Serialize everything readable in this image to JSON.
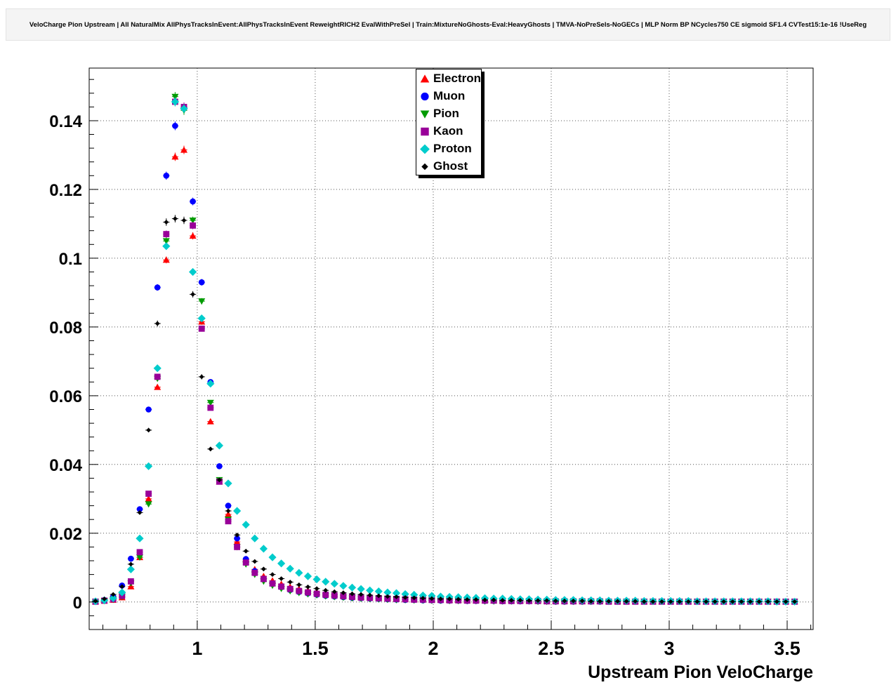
{
  "title": "VeloCharge Pion Upstream | All NaturalMix AllPhysTracksInEvent:AllPhysTracksInEvent ReweightRICH2 EvalWithPreSel | Train:MixtureNoGhosts-Eval:HeavyGhosts | TMVA-NoPreSels-NoGECs | MLP Norm BP NCycles750 CE sigmoid SF1.4 CVTest15:1e-16 !UseReg",
  "x_axis": {
    "label": "Upstream Pion VeloCharge",
    "min": 0.542,
    "max": 3.61,
    "major_ticks": [
      1,
      1.5,
      2,
      2.5,
      3,
      3.5
    ],
    "tick_labels": [
      "1",
      "1.5",
      "2",
      "2.5",
      "3",
      "3.5"
    ],
    "minor_step": 0.1
  },
  "y_axis": {
    "min": -0.008,
    "max": 0.1553,
    "major_ticks": [
      0,
      0.02,
      0.04,
      0.06,
      0.08,
      0.1,
      0.12,
      0.14
    ],
    "tick_labels": [
      "0",
      "0.02",
      "0.04",
      "0.06",
      "0.08",
      "0.1",
      "0.12",
      "0.14"
    ],
    "minor_step": 0.004
  },
  "chart_data": {
    "type": "scatter",
    "xlabel": "Upstream Pion VeloCharge",
    "ylabel": "",
    "grid": "dotted",
    "legend_position": "top-center",
    "x": [
      0.5688,
      0.6063,
      0.6438,
      0.6813,
      0.7188,
      0.7563,
      0.7938,
      0.8313,
      0.8688,
      0.9063,
      0.9438,
      0.9813,
      1.0188,
      1.0563,
      1.0938,
      1.1313,
      1.1688,
      1.2063,
      1.2438,
      1.2813,
      1.3188,
      1.3563,
      1.3938,
      1.4313,
      1.4688,
      1.5063,
      1.5438,
      1.5813,
      1.6188,
      1.6563,
      1.6938,
      1.7313,
      1.7688,
      1.8063,
      1.8438,
      1.8813,
      1.9188,
      1.9563,
      1.9938,
      2.0313,
      2.0688,
      2.1063,
      2.1438,
      2.1813,
      2.2188,
      2.2563,
      2.2938,
      2.3313,
      2.3688,
      2.4063,
      2.4438,
      2.4813,
      2.5188,
      2.5563,
      2.5938,
      2.6313,
      2.6688,
      2.7063,
      2.7438,
      2.7813,
      2.8188,
      2.8563,
      2.8938,
      2.9313,
      2.9688,
      3.0063,
      3.0438,
      3.0813,
      3.1188,
      3.1563,
      3.1938,
      3.2313,
      3.2688,
      3.3063,
      3.3438,
      3.3813,
      3.4188,
      3.4563,
      3.4938,
      3.5313
    ],
    "series": [
      {
        "name": "Electron",
        "color": "#ff0000",
        "marker": "triangle-up",
        "y": [
          0.0001,
          0.0003,
          0.0006,
          0.0013,
          0.0045,
          0.013,
          0.03,
          0.0625,
          0.0995,
          0.1295,
          0.1315,
          0.1065,
          0.0815,
          0.0525,
          0.035,
          0.0255,
          0.0175,
          0.0125,
          0.0095,
          0.0075,
          0.0062,
          0.0052,
          0.0044,
          0.0038,
          0.0033,
          0.0029,
          0.0025,
          0.0022,
          0.0019,
          0.0017,
          0.0015,
          0.0013,
          0.0012,
          0.0011,
          0.001,
          0.0009,
          0.0008,
          0.0008,
          0.0007,
          0.0007,
          0.0006,
          0.0006,
          0.0005,
          0.0005,
          0.0005,
          0.0004,
          0.0004,
          0.0004,
          0.0004,
          0.0003,
          0.0003,
          0.0003,
          0.0003,
          0.0003,
          0.0002,
          0.0002,
          0.0002,
          0.0002,
          0.0002,
          0.0002,
          0.0002,
          0.0002,
          0.0001,
          0.0001,
          0.0001,
          0.0001,
          0.0001,
          0.0001,
          0.0001,
          0.0001,
          0.0001,
          0.0001,
          0.0001,
          0.0001,
          0.0001,
          0.0001,
          0.0001,
          0.0001,
          0.0001,
          0.0001
        ]
      },
      {
        "name": "Muon",
        "color": "#0000ff",
        "marker": "circle",
        "y": [
          0.0002,
          0.0006,
          0.0016,
          0.0048,
          0.0126,
          0.027,
          0.056,
          0.0915,
          0.124,
          0.1385,
          0.144,
          0.1165,
          0.093,
          0.064,
          0.0395,
          0.028,
          0.0185,
          0.0125,
          0.009,
          0.0068,
          0.0053,
          0.0043,
          0.0035,
          0.0029,
          0.0025,
          0.0021,
          0.0018,
          0.0016,
          0.0014,
          0.0012,
          0.0011,
          0.001,
          0.0009,
          0.0008,
          0.0007,
          0.0006,
          0.0006,
          0.0005,
          0.0005,
          0.0004,
          0.0004,
          0.0004,
          0.0003,
          0.0003,
          0.0003,
          0.0003,
          0.0002,
          0.0002,
          0.0002,
          0.0002,
          0.0002,
          0.0002,
          0.0001,
          0.0001,
          0.0001,
          0.0001,
          0.0001,
          0.0001,
          0.0001,
          0.0001,
          0.0001,
          0.0001,
          0.0001,
          0.0001,
          0.0001,
          0.0001,
          0.0001,
          0.0001,
          0.0001,
          0.0001,
          0.0001,
          0.0001,
          0.0001,
          0.0001,
          0.0001,
          0.0001,
          0.0001,
          0.0001,
          0.0001,
          0.0001
        ]
      },
      {
        "name": "Pion",
        "color": "#009b00",
        "marker": "triangle-down",
        "y": [
          0.0001,
          0.0003,
          0.0007,
          0.0016,
          0.0055,
          0.013,
          0.0285,
          0.065,
          0.105,
          0.147,
          0.143,
          0.111,
          0.0875,
          0.058,
          0.0355,
          0.024,
          0.016,
          0.011,
          0.008,
          0.006,
          0.0048,
          0.0039,
          0.0032,
          0.0027,
          0.0023,
          0.002,
          0.0017,
          0.0015,
          0.0013,
          0.0011,
          0.001,
          0.0009,
          0.0008,
          0.0007,
          0.0006,
          0.0006,
          0.0005,
          0.0005,
          0.0004,
          0.0004,
          0.0003,
          0.0003,
          0.0003,
          0.0003,
          0.0002,
          0.0002,
          0.0002,
          0.0002,
          0.0002,
          0.0002,
          0.0001,
          0.0001,
          0.0001,
          0.0001,
          0.0001,
          0.0001,
          0.0001,
          0.0001,
          0.0001,
          0.0001,
          0.0001,
          0.0001,
          0.0001,
          0.0001,
          0.0001,
          0.0001,
          0.0001,
          0.0001,
          0.0001,
          0.0001,
          0.0001,
          0.0001,
          0.0001,
          0.0001,
          0.0001,
          0.0001,
          0.0001,
          0.0001,
          0.0001,
          0.0001
        ]
      },
      {
        "name": "Kaon",
        "color": "#990099",
        "marker": "square",
        "y": [
          0.0001,
          0.0004,
          0.0008,
          0.0018,
          0.006,
          0.0145,
          0.0315,
          0.0655,
          0.107,
          0.1455,
          0.144,
          0.1095,
          0.0795,
          0.0565,
          0.035,
          0.0235,
          0.016,
          0.0115,
          0.0085,
          0.0067,
          0.0054,
          0.0045,
          0.0038,
          0.0032,
          0.0028,
          0.0024,
          0.0021,
          0.0019,
          0.0017,
          0.0015,
          0.0013,
          0.0012,
          0.0011,
          0.001,
          0.0009,
          0.0008,
          0.0007,
          0.0007,
          0.0006,
          0.0006,
          0.0005,
          0.0005,
          0.0004,
          0.0004,
          0.0004,
          0.0004,
          0.0003,
          0.0003,
          0.0003,
          0.0003,
          0.0003,
          0.0002,
          0.0002,
          0.0002,
          0.0002,
          0.0002,
          0.0002,
          0.0002,
          0.0001,
          0.0001,
          0.0001,
          0.0001,
          0.0001,
          0.0001,
          0.0001,
          0.0001,
          0.0001,
          0.0001,
          0.0001,
          0.0001,
          0.0001,
          0.0001,
          0.0001,
          0.0001,
          0.0001,
          0.0001,
          0.0001,
          0.0001,
          0.0001,
          0.0001
        ]
      },
      {
        "name": "Proton",
        "color": "#00cccc",
        "marker": "diamond",
        "y": [
          0.0002,
          0.0005,
          0.0011,
          0.0028,
          0.0095,
          0.0185,
          0.0395,
          0.068,
          0.1035,
          0.1455,
          0.1435,
          0.096,
          0.0825,
          0.0635,
          0.0455,
          0.0345,
          0.0265,
          0.0225,
          0.0185,
          0.0155,
          0.013,
          0.0112,
          0.0097,
          0.0085,
          0.0075,
          0.0066,
          0.0059,
          0.0053,
          0.0047,
          0.0042,
          0.0038,
          0.0034,
          0.0031,
          0.0028,
          0.0026,
          0.0023,
          0.0021,
          0.0019,
          0.0018,
          0.0016,
          0.0015,
          0.0014,
          0.0013,
          0.0012,
          0.0011,
          0.001,
          0.001,
          0.0009,
          0.0008,
          0.0008,
          0.0007,
          0.0007,
          0.0006,
          0.0006,
          0.0006,
          0.0005,
          0.0005,
          0.0005,
          0.0004,
          0.0004,
          0.0004,
          0.0004,
          0.0003,
          0.0003,
          0.0003,
          0.0003,
          0.0003,
          0.0003,
          0.0002,
          0.0002,
          0.0002,
          0.0002,
          0.0002,
          0.0002,
          0.0002,
          0.0002,
          0.0002,
          0.0001,
          0.0001,
          0.0001
        ]
      },
      {
        "name": "Ghost",
        "color": "#000000",
        "marker": "diamond-small",
        "y": [
          0.0003,
          0.0009,
          0.0022,
          0.0045,
          0.011,
          0.026,
          0.05,
          0.081,
          0.1105,
          0.1115,
          0.111,
          0.0895,
          0.0655,
          0.0445,
          0.0355,
          0.0265,
          0.0195,
          0.0148,
          0.0118,
          0.0096,
          0.008,
          0.0068,
          0.0058,
          0.005,
          0.0044,
          0.0039,
          0.0034,
          0.003,
          0.0027,
          0.0024,
          0.0022,
          0.002,
          0.0018,
          0.0016,
          0.0015,
          0.0013,
          0.0012,
          0.0011,
          0.001,
          0.0009,
          0.0009,
          0.0008,
          0.0007,
          0.0007,
          0.0006,
          0.0006,
          0.0005,
          0.0005,
          0.0005,
          0.0004,
          0.0004,
          0.0004,
          0.0003,
          0.0003,
          0.0003,
          0.0003,
          0.0002,
          0.0002,
          0.0002,
          0.0002,
          0.0002,
          0.0002,
          0.0001,
          0.0001,
          0.0001,
          0.0001,
          0.0001,
          0.0001,
          0.0001,
          0.0001,
          0.0001,
          0.0001,
          0.0001,
          0.0001,
          0.0001,
          0.0001,
          0.0001,
          0.0001,
          0.0001,
          0.0001
        ]
      }
    ]
  }
}
